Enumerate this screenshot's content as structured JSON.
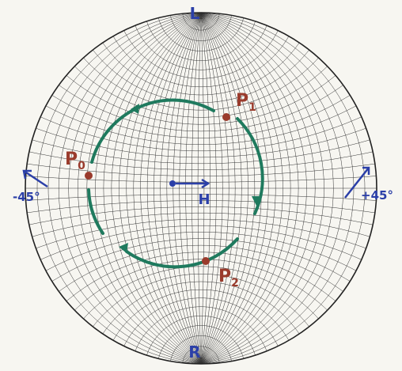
{
  "labels": {
    "top": "L",
    "bottom": "R",
    "center": "H",
    "left": "-45°",
    "right": "+45°"
  },
  "points": [
    {
      "letter": "P",
      "index": "0"
    },
    {
      "letter": "P",
      "index": "1"
    },
    {
      "letter": "P",
      "index": "2"
    }
  ]
}
